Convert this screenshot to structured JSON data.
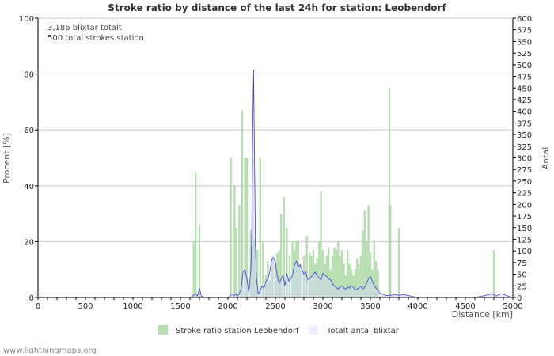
{
  "chart_data": {
    "type": "bar",
    "title": "Stroke ratio by distance of the last 24h for station: Leobendorf",
    "xlabel": "Distance   [km]",
    "ylabel_left": "Procent   [%]",
    "ylabel_right": "Antal",
    "xlim": [
      0,
      5000
    ],
    "ylim_left": [
      0,
      100
    ],
    "ylim_right": [
      0,
      600
    ],
    "xticks": [
      0,
      500,
      1000,
      1500,
      2000,
      2500,
      3000,
      3500,
      4000,
      4500,
      5000
    ],
    "yticks_left": [
      0,
      20,
      40,
      60,
      80,
      100
    ],
    "yticks_right": [
      0,
      25,
      50,
      75,
      100,
      125,
      150,
      175,
      200,
      225,
      250,
      275,
      300,
      325,
      350,
      375,
      400,
      425,
      450,
      475,
      500,
      525,
      550,
      575,
      600
    ],
    "annotations": [
      "3,186 blixtar totalt",
      "500 total strokes station"
    ],
    "legend": [
      "Stroke ratio station Leobendorf",
      "Totalt antal blixtar"
    ],
    "series": [
      {
        "name": "Stroke ratio station Leobendorf",
        "kind": "bar",
        "axis": "left",
        "x": [
          1640,
          1660,
          1700,
          2030,
          2070,
          2090,
          2120,
          2150,
          2180,
          2200,
          2240,
          2260,
          2280,
          2310,
          2340,
          2370,
          2400,
          2420,
          2440,
          2470,
          2500,
          2520,
          2540,
          2560,
          2590,
          2620,
          2650,
          2680,
          2700,
          2720,
          2740,
          2760,
          2800,
          2830,
          2860,
          2880,
          2900,
          2920,
          2940,
          2960,
          2980,
          3000,
          3020,
          3040,
          3060,
          3080,
          3100,
          3120,
          3140,
          3160,
          3180,
          3200,
          3220,
          3240,
          3260,
          3280,
          3300,
          3320,
          3340,
          3360,
          3380,
          3400,
          3420,
          3440,
          3460,
          3480,
          3500,
          3520,
          3540,
          3560,
          3580,
          3700,
          3710,
          3800,
          4800
        ],
        "values": [
          20,
          45,
          26,
          50,
          40,
          25,
          33,
          67,
          50,
          50,
          24,
          50,
          21,
          17,
          50,
          20,
          8,
          13,
          6,
          15,
          13,
          16,
          17,
          30,
          36,
          25,
          15,
          20,
          17,
          20,
          20,
          12,
          15,
          22,
          16,
          15,
          17,
          12,
          14,
          20,
          38,
          17,
          12,
          15,
          18,
          10,
          15,
          18,
          17,
          20,
          15,
          17,
          12,
          8,
          17,
          12,
          10,
          8,
          10,
          14,
          12,
          15,
          24,
          31,
          20,
          33,
          16,
          10,
          20,
          13,
          10,
          75,
          33,
          25,
          17
        ]
      },
      {
        "name": "Totalt antal blixtar",
        "kind": "line",
        "axis": "right",
        "x": [
          0,
          1600,
          1620,
          1640,
          1660,
          1680,
          1700,
          1720,
          1760,
          2000,
          2020,
          2040,
          2060,
          2080,
          2100,
          2120,
          2140,
          2160,
          2180,
          2200,
          2220,
          2240,
          2250,
          2260,
          2270,
          2280,
          2290,
          2300,
          2320,
          2340,
          2360,
          2380,
          2400,
          2420,
          2440,
          2460,
          2480,
          2500,
          2520,
          2540,
          2560,
          2580,
          2600,
          2620,
          2640,
          2660,
          2680,
          2700,
          2720,
          2740,
          2760,
          2780,
          2800,
          2820,
          2840,
          2860,
          2880,
          2900,
          2920,
          2940,
          2960,
          2980,
          3000,
          3020,
          3040,
          3060,
          3080,
          3100,
          3120,
          3140,
          3160,
          3180,
          3200,
          3220,
          3240,
          3260,
          3280,
          3300,
          3320,
          3340,
          3360,
          3380,
          3400,
          3420,
          3440,
          3460,
          3480,
          3500,
          3520,
          3540,
          3560,
          3580,
          3600,
          3650,
          3700,
          3750,
          3800,
          3850,
          3900,
          4000,
          4600,
          4700,
          4780,
          4800,
          4820,
          4880,
          5000
        ],
        "values": [
          0,
          0,
          2,
          6,
          8,
          3,
          20,
          3,
          0,
          0,
          3,
          8,
          4,
          7,
          3,
          8,
          20,
          55,
          60,
          40,
          10,
          55,
          120,
          345,
          490,
          300,
          110,
          40,
          8,
          15,
          25,
          20,
          35,
          40,
          55,
          80,
          85,
          75,
          45,
          30,
          40,
          48,
          25,
          52,
          35,
          40,
          48,
          68,
          78,
          65,
          70,
          60,
          50,
          55,
          38,
          40,
          45,
          50,
          55,
          45,
          42,
          38,
          52,
          48,
          45,
          40,
          38,
          30,
          25,
          22,
          18,
          22,
          25,
          20,
          18,
          22,
          20,
          25,
          22,
          15,
          18,
          20,
          25,
          18,
          22,
          30,
          40,
          45,
          35,
          25,
          20,
          15,
          10,
          5,
          4,
          6,
          5,
          6,
          4,
          0,
          0,
          4,
          8,
          6,
          3,
          8,
          0
        ]
      }
    ]
  },
  "footer": "www.lightningmaps.org"
}
